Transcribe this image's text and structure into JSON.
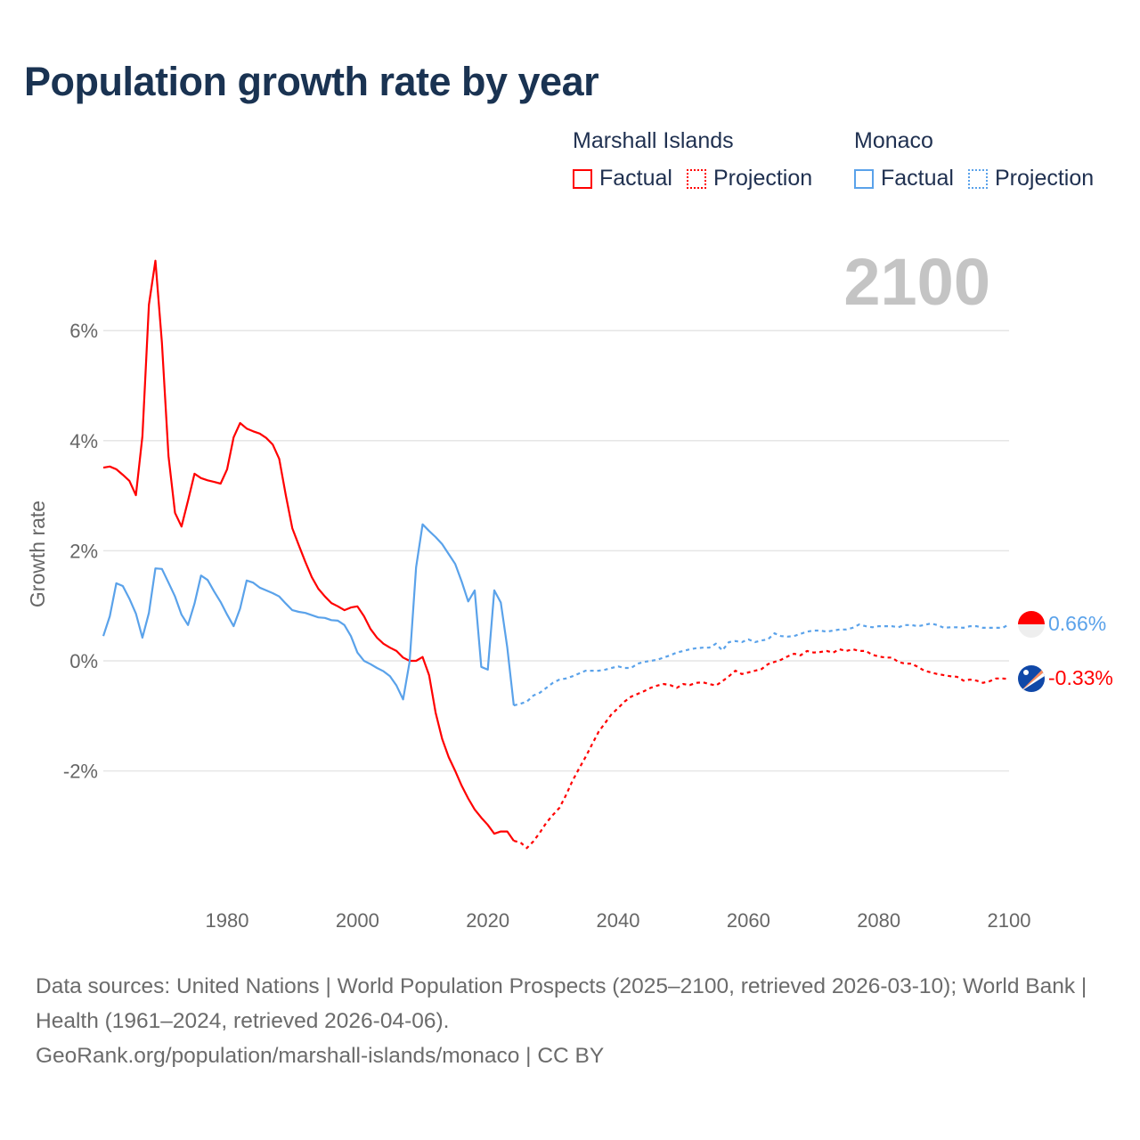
{
  "title": "Population growth rate by year",
  "legend": {
    "groups": [
      {
        "name": "Marshall Islands",
        "color": "#ff0000",
        "items": [
          "Factual",
          "Projection"
        ]
      },
      {
        "name": "Monaco",
        "color": "#5aa2ea",
        "items": [
          "Factual",
          "Projection"
        ]
      }
    ]
  },
  "year_label": "2100",
  "footer": {
    "sources": "Data sources: United Nations | World Population Prospects (2025–2100, retrieved 2026-03-10); World Bank | Health (1961–2024, retrieved 2026-04-06).",
    "credit": "GeoRank.org/population/marshall-islands/monaco | CC BY"
  },
  "chart_data": {
    "type": "line",
    "title": "Population growth rate by year",
    "xlabel": "",
    "ylabel": "Growth rate",
    "xlim": [
      1961,
      2100
    ],
    "ylim": [
      -4,
      7.5
    ],
    "x_ticks": [
      1980,
      2000,
      2020,
      2040,
      2060,
      2080,
      2100
    ],
    "y_ticks": [
      {
        "value": 6,
        "label": "6%"
      },
      {
        "value": 4,
        "label": "4%"
      },
      {
        "value": 2,
        "label": "2%"
      },
      {
        "value": 0,
        "label": "0%"
      },
      {
        "value": -2,
        "label": "-2%"
      }
    ],
    "grid": true,
    "legend_placement": "top-right",
    "series": [
      {
        "name": "Marshall Islands",
        "color": "#ff0000",
        "end_label": "-0.33%",
        "factual_start": 1961,
        "factual": [
          3.51,
          3.53,
          3.48,
          3.38,
          3.27,
          3.01,
          4.08,
          6.47,
          7.27,
          5.78,
          3.72,
          2.69,
          2.44,
          2.91,
          3.4,
          3.32,
          3.28,
          3.25,
          3.22,
          3.48,
          4.06,
          4.32,
          4.22,
          4.17,
          4.13,
          4.05,
          3.93,
          3.67,
          3.01,
          2.41,
          2.1,
          1.8,
          1.52,
          1.31,
          1.17,
          1.05,
          0.99,
          0.92,
          0.97,
          0.99,
          0.81,
          0.58,
          0.42,
          0.31,
          0.24,
          0.18,
          0.06,
          0.0,
          0.0,
          0.07,
          -0.26,
          -0.94,
          -1.42,
          -1.75,
          -2.0,
          -2.27,
          -2.5,
          -2.7,
          -2.85,
          -2.98,
          -3.14,
          -3.1,
          -3.1,
          -3.27
        ],
        "projection_start": 2024,
        "projection": [
          -3.27,
          -3.3,
          -3.4,
          -3.28,
          -3.12,
          -2.94,
          -2.8,
          -2.67,
          -2.44,
          -2.18,
          -1.96,
          -1.75,
          -1.52,
          -1.29,
          -1.13,
          -0.97,
          -0.86,
          -0.74,
          -0.65,
          -0.6,
          -0.55,
          -0.49,
          -0.45,
          -0.42,
          -0.44,
          -0.49,
          -0.42,
          -0.44,
          -0.4,
          -0.39,
          -0.42,
          -0.45,
          -0.37,
          -0.28,
          -0.18,
          -0.24,
          -0.21,
          -0.18,
          -0.15,
          -0.06,
          -0.02,
          0.02,
          0.08,
          0.13,
          0.1,
          0.18,
          0.15,
          0.16,
          0.18,
          0.15,
          0.21,
          0.18,
          0.21,
          0.18,
          0.18,
          0.11,
          0.08,
          0.06,
          0.06,
          -0.02,
          -0.05,
          -0.05,
          -0.11,
          -0.18,
          -0.21,
          -0.24,
          -0.26,
          -0.28,
          -0.29,
          -0.36,
          -0.34,
          -0.36,
          -0.4,
          -0.37,
          -0.32,
          -0.32,
          -0.33
        ]
      },
      {
        "name": "Monaco",
        "color": "#5aa2ea",
        "end_label": "0.66%",
        "factual_start": 1961,
        "factual": [
          0.45,
          0.81,
          1.41,
          1.36,
          1.13,
          0.86,
          0.42,
          0.87,
          1.68,
          1.67,
          1.42,
          1.17,
          0.84,
          0.65,
          1.04,
          1.55,
          1.47,
          1.26,
          1.07,
          0.84,
          0.63,
          0.95,
          1.46,
          1.42,
          1.33,
          1.28,
          1.23,
          1.17,
          1.04,
          0.92,
          0.89,
          0.87,
          0.83,
          0.79,
          0.78,
          0.74,
          0.73,
          0.65,
          0.45,
          0.15,
          0.0,
          -0.06,
          -0.13,
          -0.19,
          -0.28,
          -0.45,
          -0.7,
          -0.02,
          1.7,
          2.48,
          2.36,
          2.25,
          2.12,
          1.94,
          1.76,
          1.44,
          1.08,
          1.28,
          -0.11,
          -0.16,
          1.28,
          1.06,
          0.24,
          -0.81
        ],
        "projection_start": 2024,
        "projection": [
          -0.81,
          -0.78,
          -0.74,
          -0.63,
          -0.58,
          -0.49,
          -0.4,
          -0.34,
          -0.32,
          -0.28,
          -0.23,
          -0.18,
          -0.18,
          -0.18,
          -0.16,
          -0.13,
          -0.1,
          -0.13,
          -0.13,
          -0.05,
          -0.02,
          0.0,
          0.02,
          0.06,
          0.1,
          0.15,
          0.18,
          0.21,
          0.23,
          0.24,
          0.24,
          0.31,
          0.19,
          0.34,
          0.36,
          0.34,
          0.39,
          0.34,
          0.37,
          0.39,
          0.5,
          0.45,
          0.44,
          0.45,
          0.49,
          0.53,
          0.55,
          0.55,
          0.53,
          0.55,
          0.57,
          0.57,
          0.6,
          0.66,
          0.63,
          0.61,
          0.63,
          0.63,
          0.63,
          0.61,
          0.65,
          0.65,
          0.63,
          0.65,
          0.68,
          0.65,
          0.6,
          0.61,
          0.61,
          0.6,
          0.63,
          0.63,
          0.6,
          0.6,
          0.6,
          0.6,
          0.66
        ]
      }
    ]
  }
}
